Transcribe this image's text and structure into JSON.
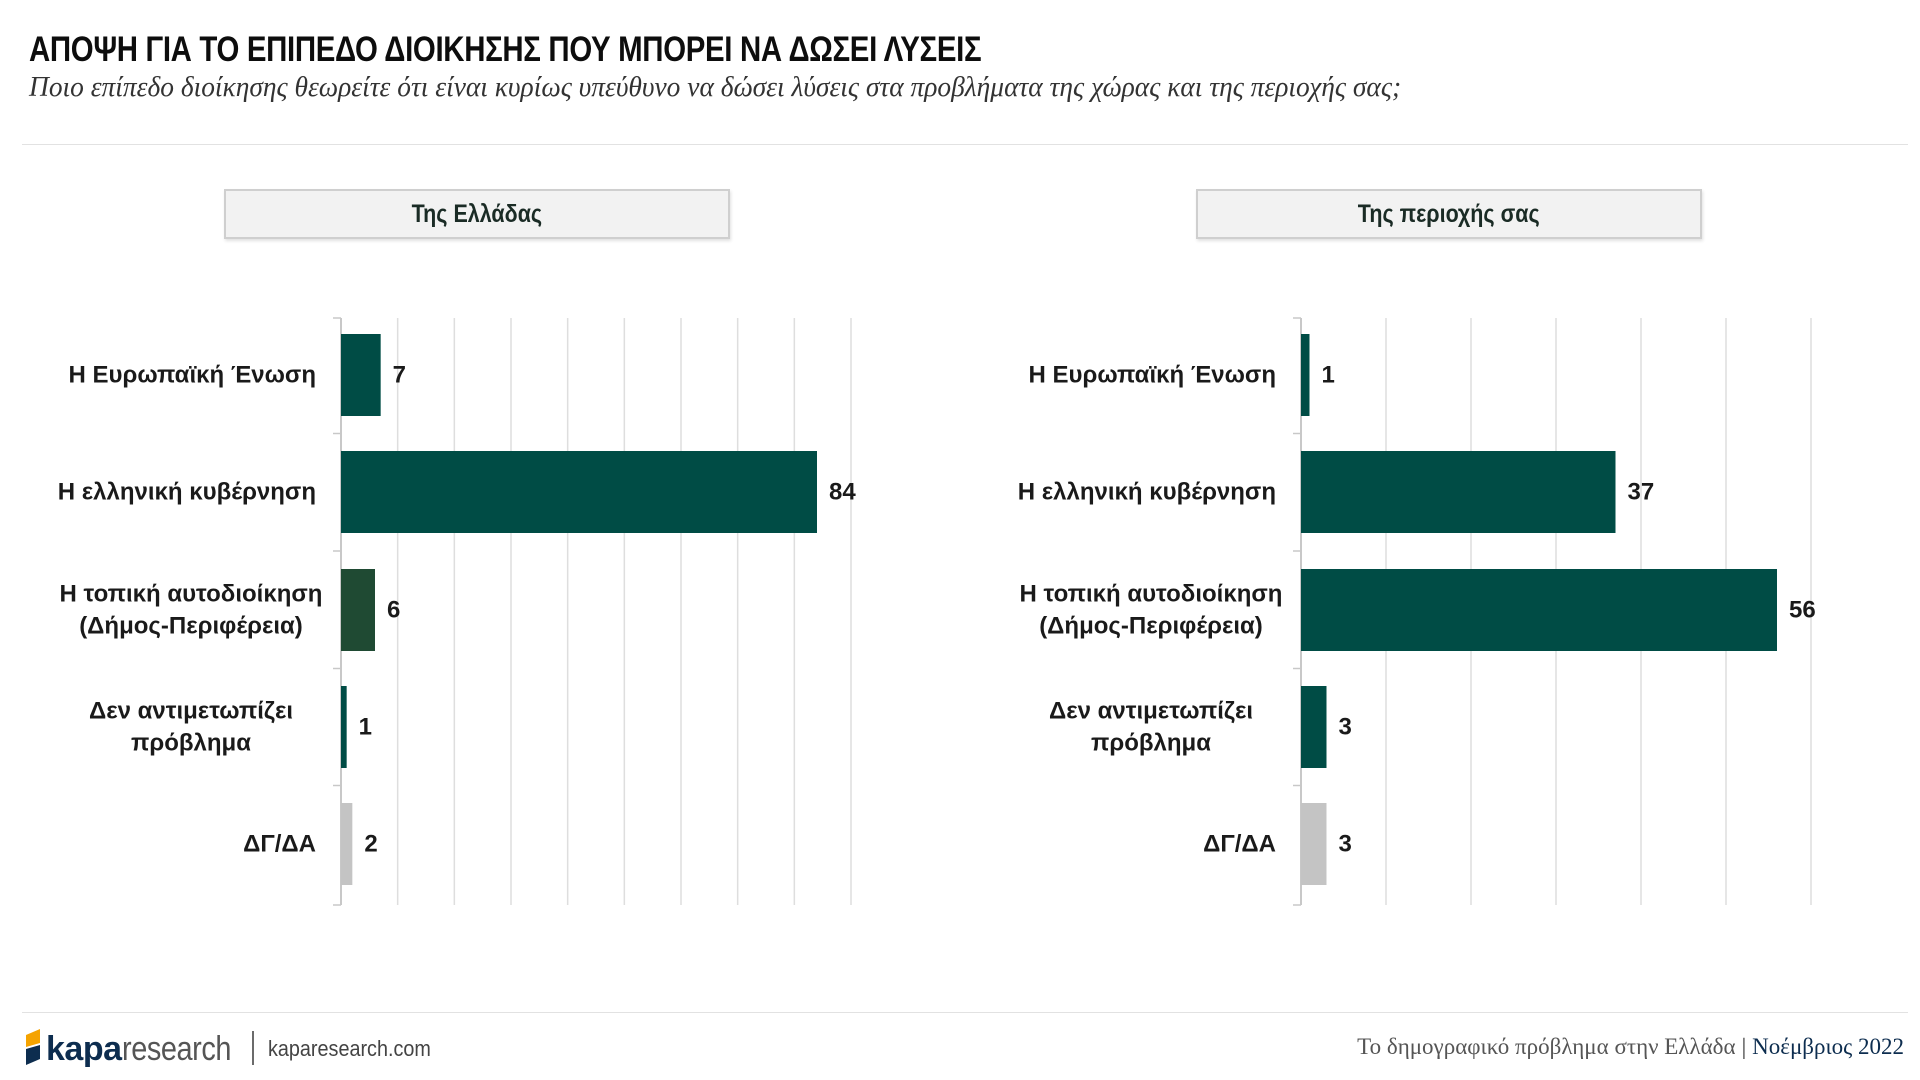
{
  "header": {
    "title": "ΑΠΟΨΗ ΓΙΑ ΤΟ ΕΠΙΠΕΔΟ ΔΙΟΙΚΗΣΗΣ ΠΟΥ ΜΠΟΡΕΙ ΝΑ ΔΩΣΕΙ ΛΥΣΕΙΣ",
    "subtitle": "Ποιο επίπεδο διοίκησης θεωρείτε ότι είναι κυρίως υπεύθυνο να δώσει λύσεις στα προβλήματα της χώρας και της περιοχής σας;"
  },
  "footer": {
    "logo_kapa": "kapa",
    "logo_research": "research",
    "url": "kaparesearch.com",
    "study": "Το δημογραφικό πρόβλημα στην Ελλάδα",
    "separator": "|",
    "date": "Νοέμβριος 2022"
  },
  "colors": {
    "primary_bar": "#004c45",
    "local_bar_left": "#1f4a33",
    "na_bar": "#c4c4c4",
    "grid": "#dedede",
    "brand_blue": "#0d2d4f",
    "brand_orange": "#f5a300"
  },
  "chart_data": [
    {
      "type": "bar",
      "orientation": "horizontal",
      "title": "Της Ελλάδας",
      "categories": [
        [
          "Η Ευρωπαϊκή Ένωση"
        ],
        [
          "Η ελληνική κυβέρνηση"
        ],
        [
          "Η τοπική αυτοδιοίκηση",
          "(Δήμος-Περιφέρεια)"
        ],
        [
          "Δεν αντιμετωπίζει",
          "πρόβλημα"
        ],
        [
          "ΔΓ/ΔΑ"
        ]
      ],
      "values": [
        7,
        84,
        6,
        1,
        2
      ],
      "value_labels": [
        "7",
        "84",
        "6",
        "1",
        "2"
      ],
      "bar_colors": [
        "#004c45",
        "#004c45",
        "#1f4a33",
        "#004c45",
        "#c4c4c4"
      ],
      "xlim": [
        0,
        90
      ],
      "grid": true
    },
    {
      "type": "bar",
      "orientation": "horizontal",
      "title": "Της περιοχής σας",
      "categories": [
        [
          "Η Ευρωπαϊκή Ένωση"
        ],
        [
          "Η ελληνική κυβέρνηση"
        ],
        [
          "Η τοπική αυτοδιοίκηση",
          "(Δήμος-Περιφέρεια)"
        ],
        [
          "Δεν αντιμετωπίζει",
          "πρόβλημα"
        ],
        [
          "ΔΓ/ΔΑ"
        ]
      ],
      "values": [
        1,
        37,
        56,
        3,
        3
      ],
      "value_labels": [
        "1",
        "37",
        "56",
        "3",
        "3"
      ],
      "bar_colors": [
        "#004c45",
        "#004c45",
        "#004c45",
        "#004c45",
        "#c4c4c4"
      ],
      "xlim": [
        0,
        60
      ],
      "grid": true
    }
  ]
}
